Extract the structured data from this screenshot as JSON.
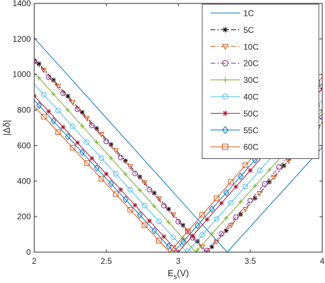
{
  "chart_data": {
    "type": "line",
    "xlabel": "E_s(V)",
    "xlabel_main": "E",
    "xlabel_sub": "s",
    "xlabel_tail": "(V)",
    "ylabel": "|Δδ|",
    "xlim": [
      2,
      4
    ],
    "ylim": [
      0,
      1400
    ],
    "xticks": [
      2,
      2.5,
      3,
      3.5,
      4
    ],
    "xtick_labels": [
      "2",
      "2.5",
      "3",
      "3.5",
      "4"
    ],
    "yticks": [
      0,
      200,
      400,
      600,
      800,
      1000,
      1200,
      1400
    ],
    "ytick_labels": [
      "0",
      "200",
      "400",
      "600",
      "800",
      "1000",
      "1200",
      "1400"
    ],
    "grid": false,
    "legend_position": "top-right",
    "series": [
      {
        "name": "1C",
        "color": "#0072bd",
        "marker": "none",
        "dash": "solid",
        "y_at_2": 1205,
        "vertex_x": 3.34,
        "y_at_4": 590
      },
      {
        "name": "5C",
        "color": "#000000",
        "marker": "star",
        "dash": "dashdot",
        "y_at_2": 1090,
        "vertex_x": 3.2,
        "y_at_4": 730
      },
      {
        "name": "10C",
        "color": "#d95319",
        "marker": "triangle",
        "dash": "dashdot",
        "y_at_2": 1085,
        "vertex_x": 3.2,
        "y_at_4": 725
      },
      {
        "name": "20C",
        "color": "#7e2f8e",
        "marker": "circle",
        "dash": "dashdot",
        "y_at_2": 1075,
        "vertex_x": 3.19,
        "y_at_4": 760
      },
      {
        "name": "30C",
        "color": "#77ac30",
        "marker": "plus",
        "dash": "solid",
        "y_at_2": 1010,
        "vertex_x": 3.12,
        "y_at_4": 795
      },
      {
        "name": "40C",
        "color": "#4dbeee",
        "marker": "circle",
        "dash": "solid",
        "y_at_2": 945,
        "vertex_x": 3.06,
        "y_at_4": 855
      },
      {
        "name": "50C",
        "color": "#a2142f",
        "marker": "star",
        "dash": "solid",
        "y_at_2": 880,
        "vertex_x": 3.0,
        "y_at_4": 920
      },
      {
        "name": "55C",
        "color": "#0072bd",
        "marker": "diamond",
        "dash": "solid",
        "y_at_2": 855,
        "vertex_x": 2.97,
        "y_at_4": 950
      },
      {
        "name": "60C",
        "color": "#d95319",
        "marker": "square",
        "dash": "solid",
        "y_at_2": 820,
        "vertex_x": 2.94,
        "y_at_4": 985
      }
    ]
  }
}
